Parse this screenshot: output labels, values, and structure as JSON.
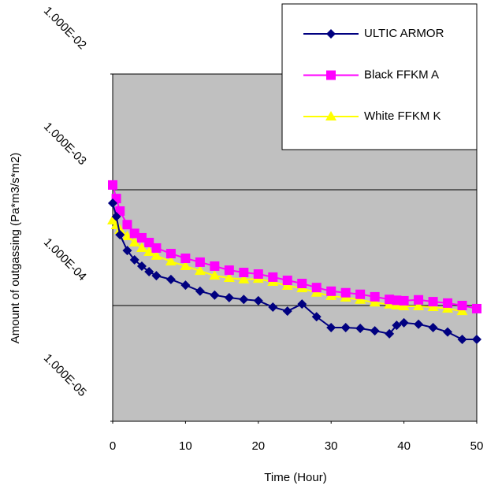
{
  "chart_data": {
    "type": "line",
    "x_label": "Time (Hour)",
    "y_label": "Amount of outgassing (Pa*m3/s*m2)",
    "log_y": true,
    "grid": true,
    "legend": "top-right",
    "background": "#c0c0c0",
    "x": [
      0,
      0.5,
      1,
      2,
      3,
      4,
      5,
      6,
      8,
      10,
      12,
      14,
      16,
      18,
      20,
      22,
      24,
      26,
      28,
      30,
      32,
      34,
      36,
      38,
      39,
      40,
      42,
      44,
      46,
      48,
      50
    ],
    "xlim": [
      0,
      50
    ],
    "xticks": [
      0,
      10,
      20,
      30,
      40,
      50
    ],
    "ylim": [
      1e-05,
      0.01
    ],
    "yticks": [
      {
        "value": 1e-05,
        "label": "1.000E-05"
      },
      {
        "value": 0.0001,
        "label": "1.000E-04"
      },
      {
        "value": 0.001,
        "label": "1.000E-03"
      },
      {
        "value": 0.01,
        "label": "1.000E-02"
      }
    ],
    "series": [
      {
        "name": "ULTIC ARMOR",
        "color": "#000080",
        "marker": "diamond",
        "values": [
          0.000766,
          0.000587,
          0.000409,
          0.000299,
          0.000248,
          0.000219,
          0.000196,
          0.000181,
          0.000168,
          0.00015,
          0.000133,
          0.000123,
          0.000117,
          0.000113,
          0.00011,
          9.7e-05,
          8.95e-05,
          0.000103,
          8e-05,
          6.45e-05,
          6.45e-05,
          6.35e-05,
          6.05e-05,
          5.7e-05,
          6.75e-05,
          7.1e-05,
          6.9e-05,
          6.45e-05,
          5.9e-05,
          5.1e-05,
          5.1e-05
        ]
      },
      {
        "name": "Black FFKM A",
        "color": "#ff00ff",
        "marker": "square",
        "values": [
          0.0011,
          0.00084,
          0.000655,
          0.0005,
          0.00042,
          0.000385,
          0.00035,
          0.000314,
          0.000281,
          0.000256,
          0.000237,
          0.000219,
          0.000202,
          0.000193,
          0.000187,
          0.000176,
          0.000165,
          0.000155,
          0.000143,
          0.000133,
          0.000129,
          0.000125,
          0.000119,
          0.000113,
          0.000111,
          0.00011,
          0.000112,
          0.000108,
          0.000105,
          0.0001,
          9.4e-05
        ]
      },
      {
        "name": "White FFKM K",
        "color": "#ffff00",
        "marker": "triangle",
        "values": [
          0.000543,
          0.000494,
          0.00045,
          0.000397,
          0.00035,
          0.000314,
          0.00029,
          0.000269,
          0.00024,
          0.000219,
          0.000199,
          0.000181,
          0.000173,
          0.000168,
          0.00017,
          0.00016,
          0.000148,
          0.000141,
          0.000129,
          0.000121,
          0.000117,
          0.000112,
          0.000106,
          0.000102,
          0.0001,
          9.85e-05,
          9.85e-05,
          9.7e-05,
          9.4e-05,
          8.95e-05,
          null
        ]
      }
    ]
  }
}
